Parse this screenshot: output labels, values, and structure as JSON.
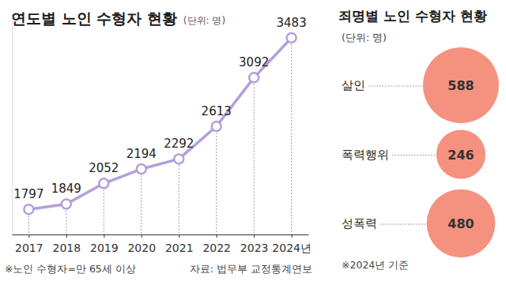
{
  "chart_data": [
    {
      "type": "line",
      "title": "연도별 노인 수형자 현황",
      "subtitle": "(단위: 명)",
      "categories": [
        "2017",
        "2018",
        "2019",
        "2020",
        "2021",
        "2022",
        "2023",
        "2024년"
      ],
      "values": [
        1797,
        1849,
        2052,
        2194,
        2292,
        2613,
        3092,
        3483
      ],
      "color": "#b39fdc",
      "ylim": [
        1550,
        3700
      ],
      "data_labels": true,
      "tick_labels": "x",
      "annotations": [
        "※노인 수형자=만 65세 이상",
        "자료: 법무부 교정통계연보"
      ]
    },
    {
      "type": "bubble",
      "title": "죄명별 노인 수형자 현황",
      "subtitle": "(단위: 명)",
      "categories": [
        "살인",
        "폭력행위",
        "성폭력"
      ],
      "values": [
        588,
        246,
        480
      ],
      "color": "#f4927f",
      "data_labels": true,
      "annotations": [
        "※2024년 기준"
      ]
    }
  ]
}
